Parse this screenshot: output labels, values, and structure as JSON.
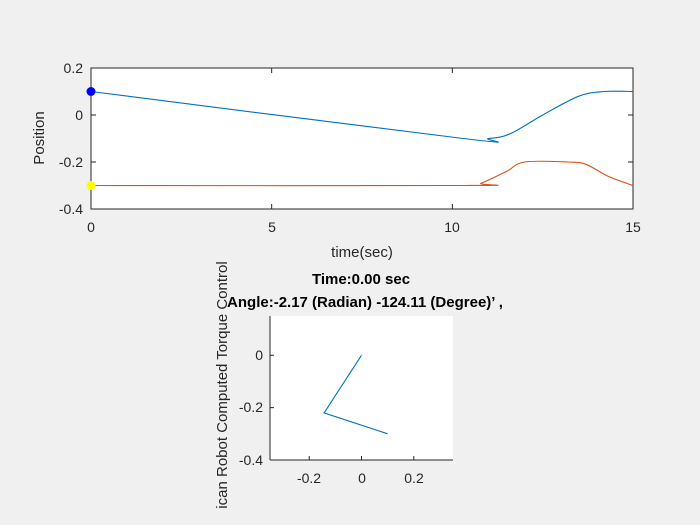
{
  "chart_data": [
    {
      "type": "line",
      "title": "",
      "xlabel": "time(sec)",
      "ylabel": "Position",
      "xlim": [
        0,
        15
      ],
      "ylim": [
        -0.4,
        0.2
      ],
      "xticks": [
        "0",
        "5",
        "10",
        "15"
      ],
      "yticks": [
        "-0.4",
        "-0.2",
        "0",
        "0.2"
      ],
      "grid": false,
      "series": [
        {
          "color": "#0072BD",
          "x": [
            0,
            10.3,
            11.0,
            11.6,
            12.5,
            13.5,
            14.2,
            15
          ],
          "y": [
            0.1,
            -0.1,
            -0.1,
            -0.08,
            0.0,
            0.08,
            0.1,
            0.1
          ]
        },
        {
          "color": "#D95319",
          "x": [
            0,
            10.4,
            10.8,
            11.5,
            12.0,
            13.2,
            13.7,
            14.3,
            15
          ],
          "y": [
            -0.3,
            -0.3,
            -0.29,
            -0.24,
            -0.2,
            -0.2,
            -0.21,
            -0.26,
            -0.3
          ]
        }
      ],
      "markers": [
        {
          "x": 0,
          "y": 0.1,
          "color": "#0000FF"
        },
        {
          "x": 0,
          "y": -0.3,
          "color": "#FFFF00"
        }
      ]
    },
    {
      "type": "line",
      "title": "Time:0.00 sec",
      "subtitle": "Angle:-2.17 (Radian) -124.11 (Degree)’ ,",
      "ylabel": "ican Robot Computed Torque Control",
      "xlim": [
        -0.35,
        0.35
      ],
      "ylim": [
        -0.4,
        0.15
      ],
      "xticks": [
        "-0.2",
        "0",
        "0.2"
      ],
      "yticks": [
        "-0.4",
        "-0.2",
        "0"
      ],
      "grid": false,
      "series": [
        {
          "color": "#0072BD",
          "x": [
            0,
            -0.143,
            0.1
          ],
          "y": [
            0,
            -0.22,
            -0.3
          ]
        }
      ]
    }
  ]
}
